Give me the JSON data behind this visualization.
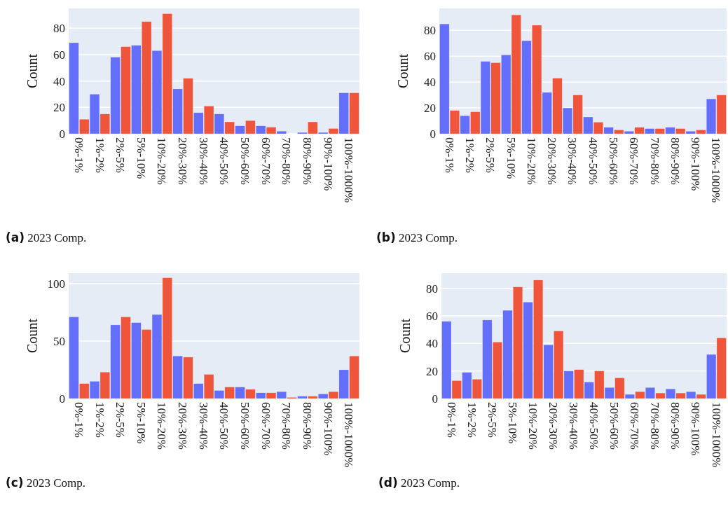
{
  "chart_data": [
    {
      "type": "bar",
      "title": "(a) 2023 Comp.",
      "ylabel": "Count",
      "categories": [
        "0%-1%",
        "1%-2%",
        "2%-5%",
        "5%-10%",
        "10%-20%",
        "20%-30%",
        "30%-40%",
        "40%-50%",
        "50%-60%",
        "60%-70%",
        "70%-80%",
        "80%-90%",
        "90%-100%",
        "100%-1000%"
      ],
      "series": [
        {
          "color": "#636efa",
          "values": [
            69,
            30,
            58,
            67,
            63,
            34,
            16,
            15,
            6,
            6,
            2,
            1,
            1,
            31
          ]
        },
        {
          "color": "#ef553b",
          "values": [
            11,
            15,
            66,
            85,
            91,
            42,
            21,
            9,
            10,
            5,
            0,
            9,
            4,
            31
          ]
        }
      ],
      "ylim": [
        0,
        95
      ],
      "yticks": [
        0,
        20,
        40,
        60,
        80
      ],
      "grid": "y"
    },
    {
      "type": "bar",
      "title": "(b) 2023 Comp.",
      "ylabel": "Count",
      "categories": [
        "0%-1%",
        "1%-2%",
        "2%-5%",
        "5%-10%",
        "10%-20%",
        "20%-30%",
        "30%-40%",
        "40%-50%",
        "50%-60%",
        "60%-70%",
        "70%-80%",
        "80%-90%",
        "90%-100%",
        "100%-1000%"
      ],
      "series": [
        {
          "color": "#636efa",
          "values": [
            85,
            14,
            56,
            61,
            72,
            32,
            20,
            13,
            5,
            2,
            4,
            5,
            2,
            27
          ]
        },
        {
          "color": "#ef553b",
          "values": [
            18,
            17,
            55,
            92,
            84,
            43,
            30,
            9,
            3,
            5,
            4,
            4,
            3,
            30
          ]
        }
      ],
      "ylim": [
        0,
        97
      ],
      "yticks": [
        0,
        20,
        40,
        60,
        80
      ],
      "grid": "y"
    },
    {
      "type": "bar",
      "title": "(c) 2023 Comp.",
      "ylabel": "Count",
      "categories": [
        "0%-1%",
        "1%-2%",
        "2%-5%",
        "5%-10%",
        "10%-20%",
        "20%-30%",
        "30%-40%",
        "40%-50%",
        "50%-60%",
        "60%-70%",
        "70%-80%",
        "80%-90%",
        "90%-100%",
        "100%-1000%"
      ],
      "series": [
        {
          "color": "#636efa",
          "values": [
            71,
            15,
            64,
            66,
            73,
            37,
            13,
            7,
            10,
            5,
            6,
            2,
            4,
            25
          ]
        },
        {
          "color": "#ef553b",
          "values": [
            13,
            23,
            71,
            60,
            105,
            36,
            21,
            10,
            8,
            5,
            1,
            2,
            6,
            37
          ]
        }
      ],
      "ylim": [
        0,
        109
      ],
      "yticks": [
        0,
        50,
        100
      ],
      "grid": "y"
    },
    {
      "type": "bar",
      "title": "(d) 2023 Comp.",
      "ylabel": "Count",
      "categories": [
        "0%-1%",
        "1%-2%",
        "2%-5%",
        "5%-10%",
        "10%-20%",
        "20%-30%",
        "30%-40%",
        "40%-50%",
        "50%-60%",
        "60%-70%",
        "70%-80%",
        "80%-90%",
        "90%-100%",
        "100%-1000%"
      ],
      "series": [
        {
          "color": "#636efa",
          "values": [
            56,
            19,
            57,
            64,
            70,
            39,
            20,
            12,
            8,
            3,
            8,
            7,
            5,
            32
          ]
        },
        {
          "color": "#ef553b",
          "values": [
            13,
            14,
            41,
            81,
            86,
            49,
            21,
            20,
            15,
            5,
            4,
            4,
            3,
            44
          ]
        }
      ],
      "ylim": [
        0,
        91
      ],
      "yticks": [
        0,
        20,
        40,
        60,
        80
      ],
      "grid": "y"
    }
  ]
}
